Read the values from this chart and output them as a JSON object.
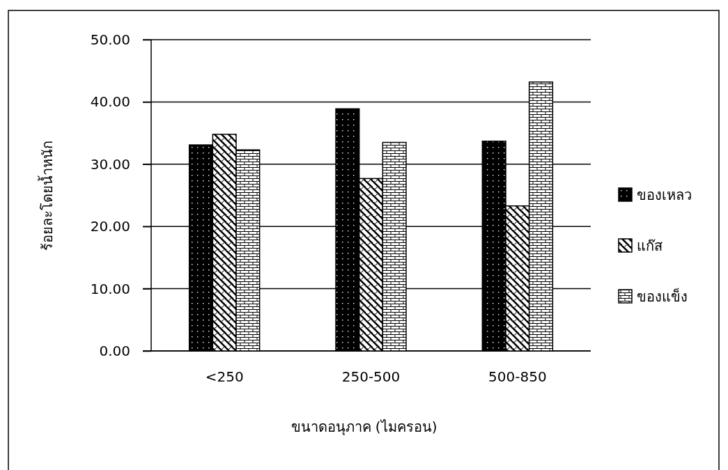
{
  "chart_data": {
    "type": "bar",
    "xlabel": "ขนาดอนุภาค (ไมครอน)",
    "ylabel": "ร้อยละโดยน้ำหนัก",
    "categories": [
      "<250",
      "250-500",
      "500-850"
    ],
    "series": [
      {
        "name": "ของเหลว",
        "color": "#000000",
        "values": [
          33.1,
          38.9,
          33.7
        ]
      },
      {
        "name": "แก๊ส",
        "color": "#000000",
        "values": [
          34.8,
          27.7,
          23.3
        ]
      },
      {
        "name": "ของแข็ง",
        "color": "#000000",
        "values": [
          32.3,
          33.5,
          43.2
        ]
      }
    ],
    "ylim": [
      0,
      50
    ],
    "yticks": [
      {
        "value": 0,
        "label": "0.00"
      },
      {
        "value": 10,
        "label": "10.00"
      },
      {
        "value": 20,
        "label": "20.00"
      },
      {
        "value": 30,
        "label": "30.00"
      },
      {
        "value": 40,
        "label": "40.00"
      },
      {
        "value": 50,
        "label": "50.00"
      }
    ],
    "grid": "y",
    "legend": "right"
  }
}
